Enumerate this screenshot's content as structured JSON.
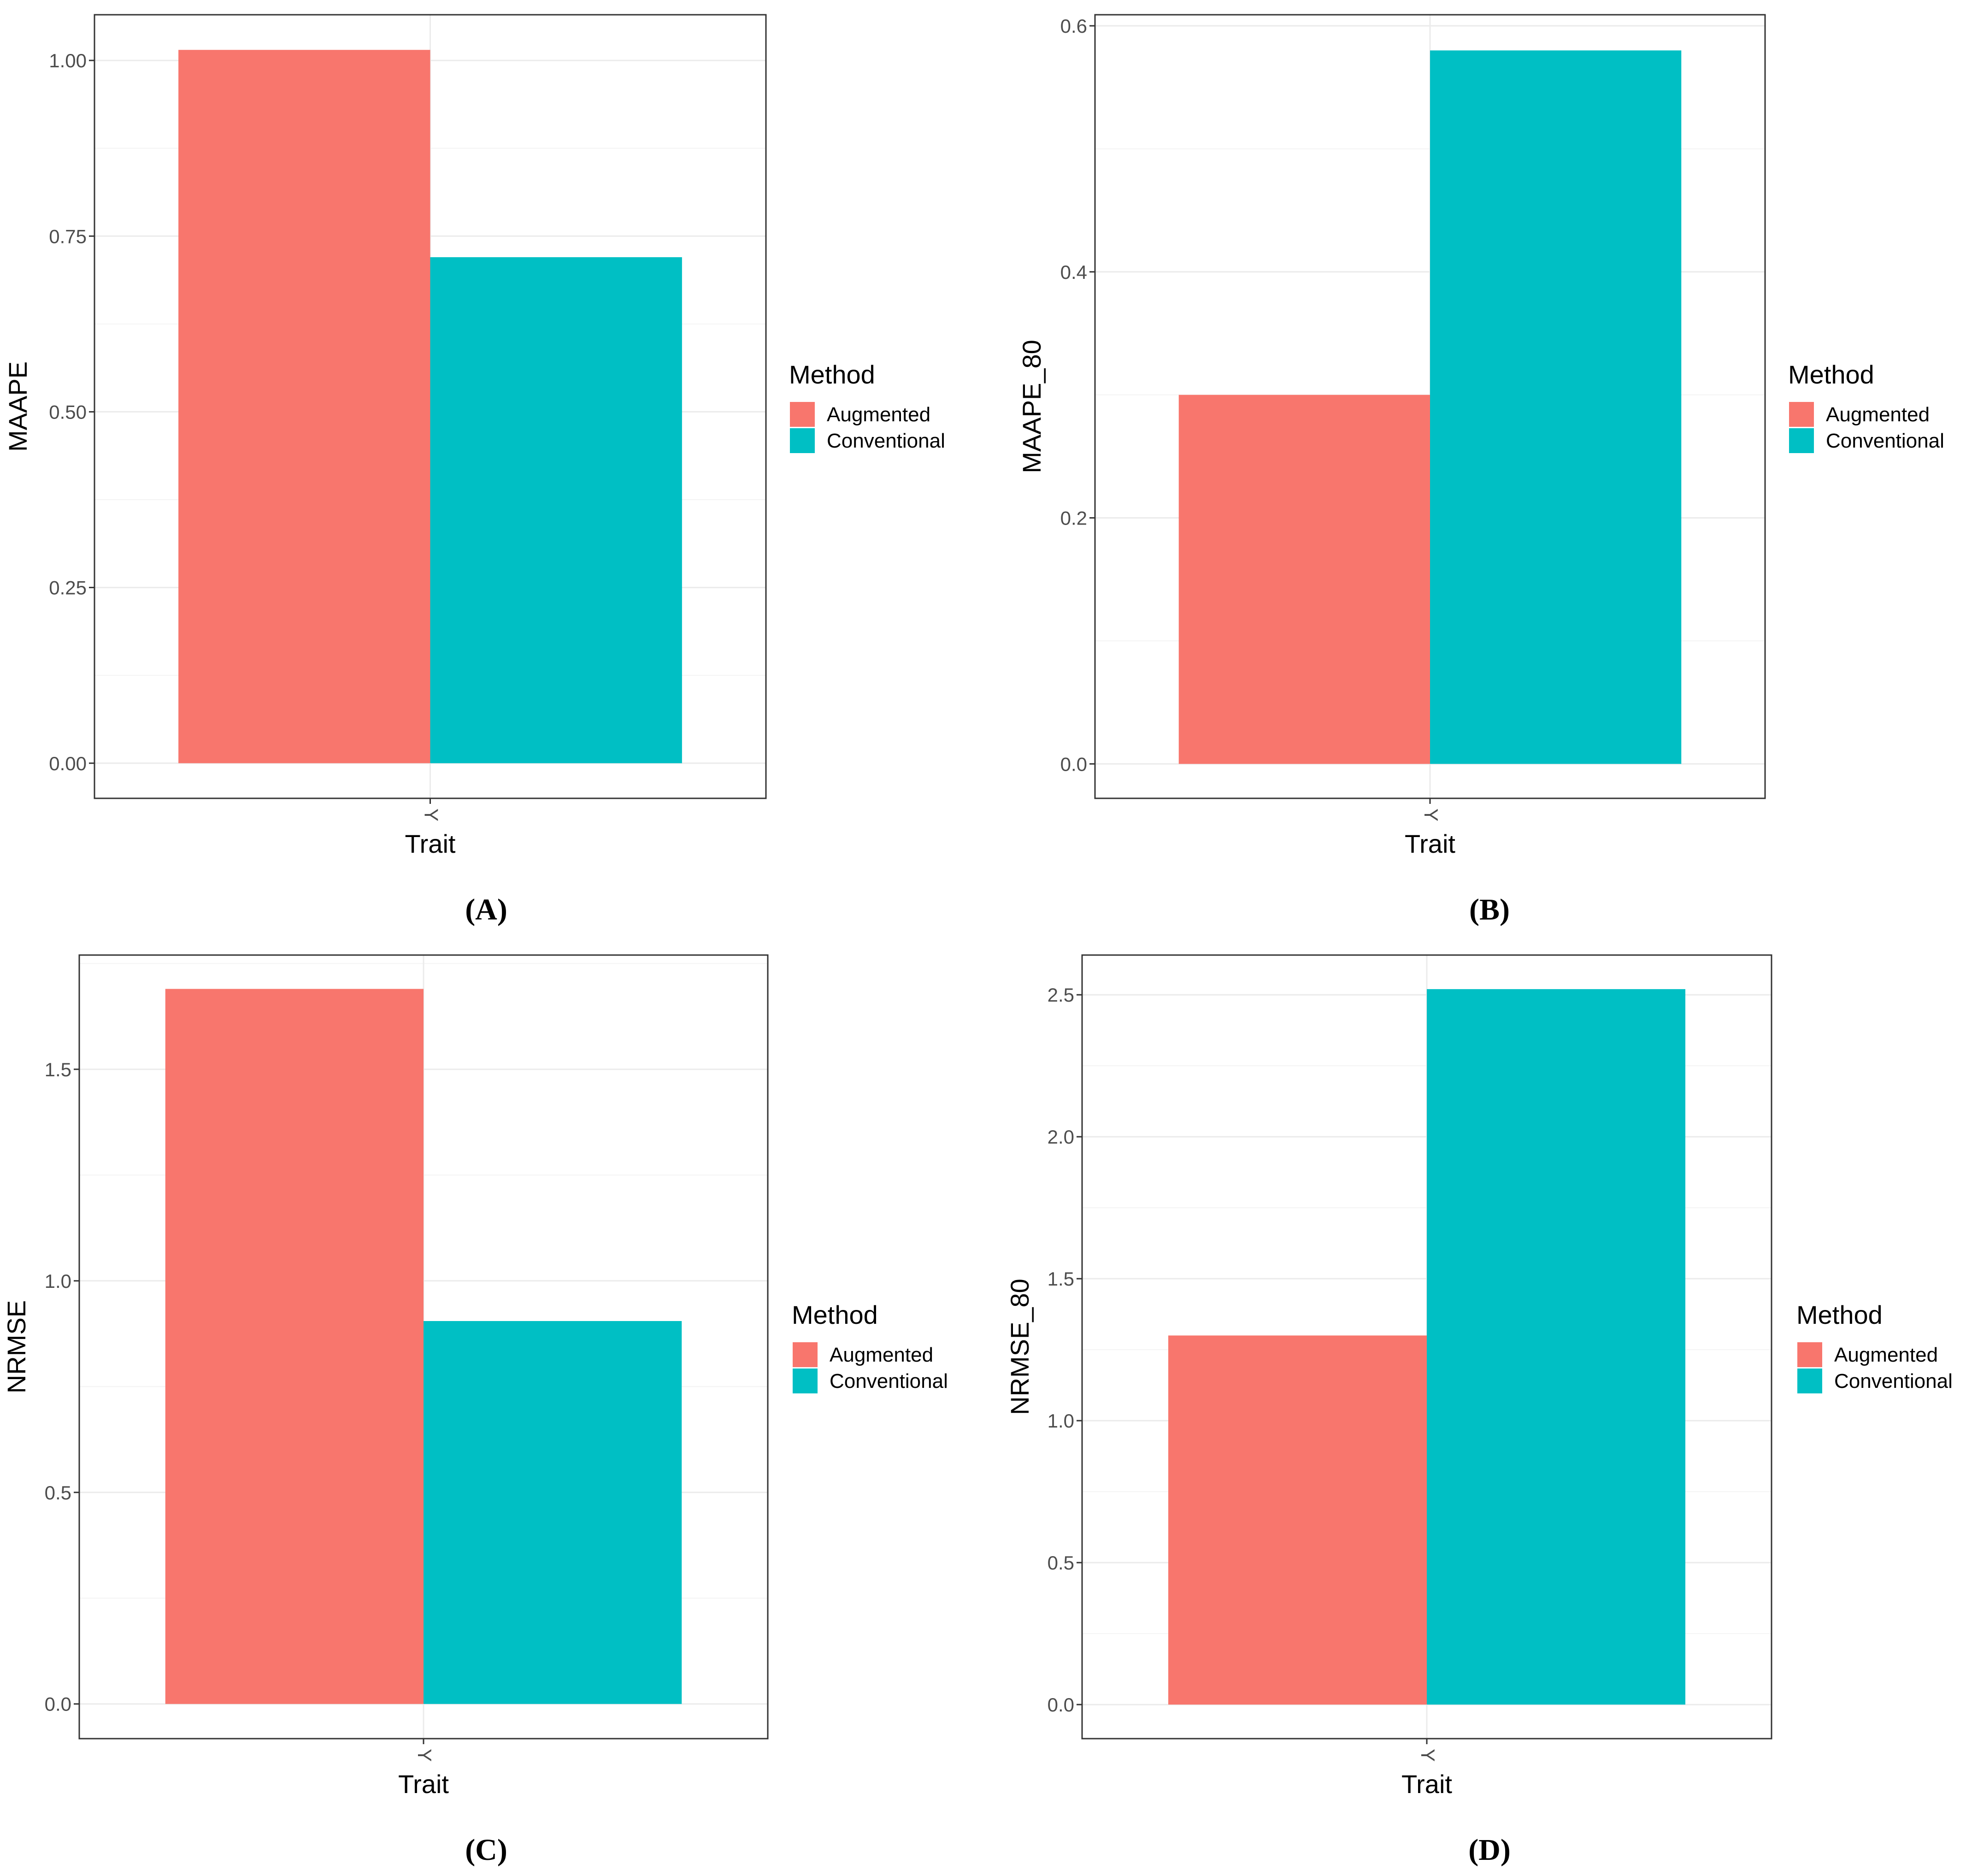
{
  "colors": {
    "augmented": "#F8766D",
    "conventional": "#00BFC4",
    "grid_major": "#EBEBEB",
    "grid_minor": "#F4F4F4",
    "panel_border": "#333333",
    "tick_text": "#4D4D4D"
  },
  "legend": {
    "title": "Method",
    "items": [
      "Augmented",
      "Conventional"
    ]
  },
  "chart_data": [
    {
      "id": "A",
      "type": "bar",
      "caption": "(A)",
      "xlabel": "Trait",
      "ylabel": "MAAPE",
      "categories": [
        "Y"
      ],
      "ylim": [
        -0.05,
        1.065
      ],
      "yticks": [
        0.0,
        0.25,
        0.5,
        0.75,
        1.0
      ],
      "ytick_labels": [
        "0.00",
        "0.25",
        "0.50",
        "0.75",
        "1.00"
      ],
      "series": [
        {
          "name": "Augmented",
          "values": [
            1.015
          ]
        },
        {
          "name": "Conventional",
          "values": [
            0.72
          ]
        }
      ]
    },
    {
      "id": "B",
      "type": "bar",
      "caption": "(B)",
      "xlabel": "Trait",
      "ylabel": "MAAPE_80",
      "categories": [
        "Y"
      ],
      "ylim": [
        -0.028,
        0.609
      ],
      "yticks": [
        0.0,
        0.2,
        0.4,
        0.6
      ],
      "ytick_labels": [
        "0.0",
        "0.2",
        "0.4",
        "0.6"
      ],
      "series": [
        {
          "name": "Augmented",
          "values": [
            0.3
          ]
        },
        {
          "name": "Conventional",
          "values": [
            0.58
          ]
        }
      ]
    },
    {
      "id": "C",
      "type": "bar",
      "caption": "(C)",
      "xlabel": "Trait",
      "ylabel": "NRMSE",
      "categories": [
        "Y"
      ],
      "ylim": [
        -0.082,
        1.77
      ],
      "yticks": [
        0.0,
        0.5,
        1.0,
        1.5
      ],
      "ytick_labels": [
        "0.0",
        "0.5",
        "1.0",
        "1.5"
      ],
      "series": [
        {
          "name": "Augmented",
          "values": [
            1.69
          ]
        },
        {
          "name": "Conventional",
          "values": [
            0.905
          ]
        }
      ]
    },
    {
      "id": "D",
      "type": "bar",
      "caption": "(D)",
      "xlabel": "Trait",
      "ylabel": "NRMSE_80",
      "categories": [
        "Y"
      ],
      "ylim": [
        -0.12,
        2.64
      ],
      "yticks": [
        0.0,
        0.5,
        1.0,
        1.5,
        2.0,
        2.5
      ],
      "ytick_labels": [
        "0.0",
        "0.5",
        "1.0",
        "1.5",
        "2.0",
        "2.5"
      ],
      "series": [
        {
          "name": "Augmented",
          "values": [
            1.3
          ]
        },
        {
          "name": "Conventional",
          "values": [
            2.52
          ]
        }
      ]
    }
  ]
}
